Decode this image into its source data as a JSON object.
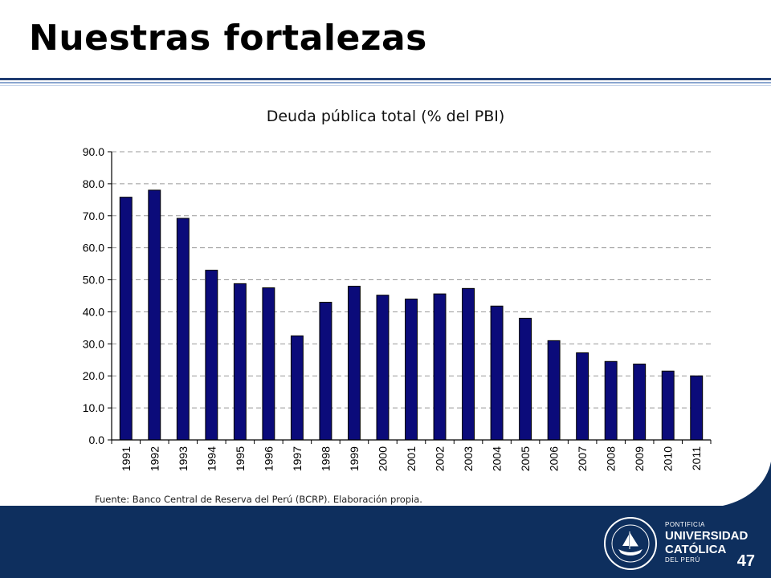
{
  "slide": {
    "title": "Nuestras fortalezas",
    "source": "Fuente: Banco Central de Reserva del Perú (BCRP). Elaboración propia.",
    "page_number": "47",
    "logo": {
      "line1": "PONTIFICIA",
      "line2": "UNIVERSIDAD",
      "line3": "CATÓLICA",
      "line4": "DEL PERÚ"
    }
  },
  "colors": {
    "bar_fill": "#0b0b7a",
    "bar_stroke": "#000000",
    "grid": "#999999",
    "footer": "#0e2f5e"
  },
  "chart_data": {
    "type": "bar",
    "title": "Deuda pública total (% del PBI)",
    "xlabel": "",
    "ylabel": "",
    "categories": [
      "1991",
      "1992",
      "1993",
      "1994",
      "1995",
      "1996",
      "1997",
      "1998",
      "1999",
      "2000",
      "2001",
      "2002",
      "2003",
      "2004",
      "2005",
      "2006",
      "2007",
      "2008",
      "2009",
      "2010",
      "2011"
    ],
    "values": [
      75.8,
      78.0,
      69.2,
      53.0,
      48.8,
      47.5,
      32.5,
      43.0,
      48.0,
      45.2,
      44.0,
      45.6,
      47.3,
      41.8,
      38.0,
      31.0,
      27.2,
      24.5,
      23.7,
      21.5,
      20.0
    ],
    "ylim": [
      0,
      90
    ],
    "yticks": [
      "0.0",
      "10.0",
      "20.0",
      "30.0",
      "40.0",
      "50.0",
      "60.0",
      "70.0",
      "80.0",
      "90.0"
    ],
    "grid": true,
    "grid_style": "dashed",
    "legend": "none"
  }
}
